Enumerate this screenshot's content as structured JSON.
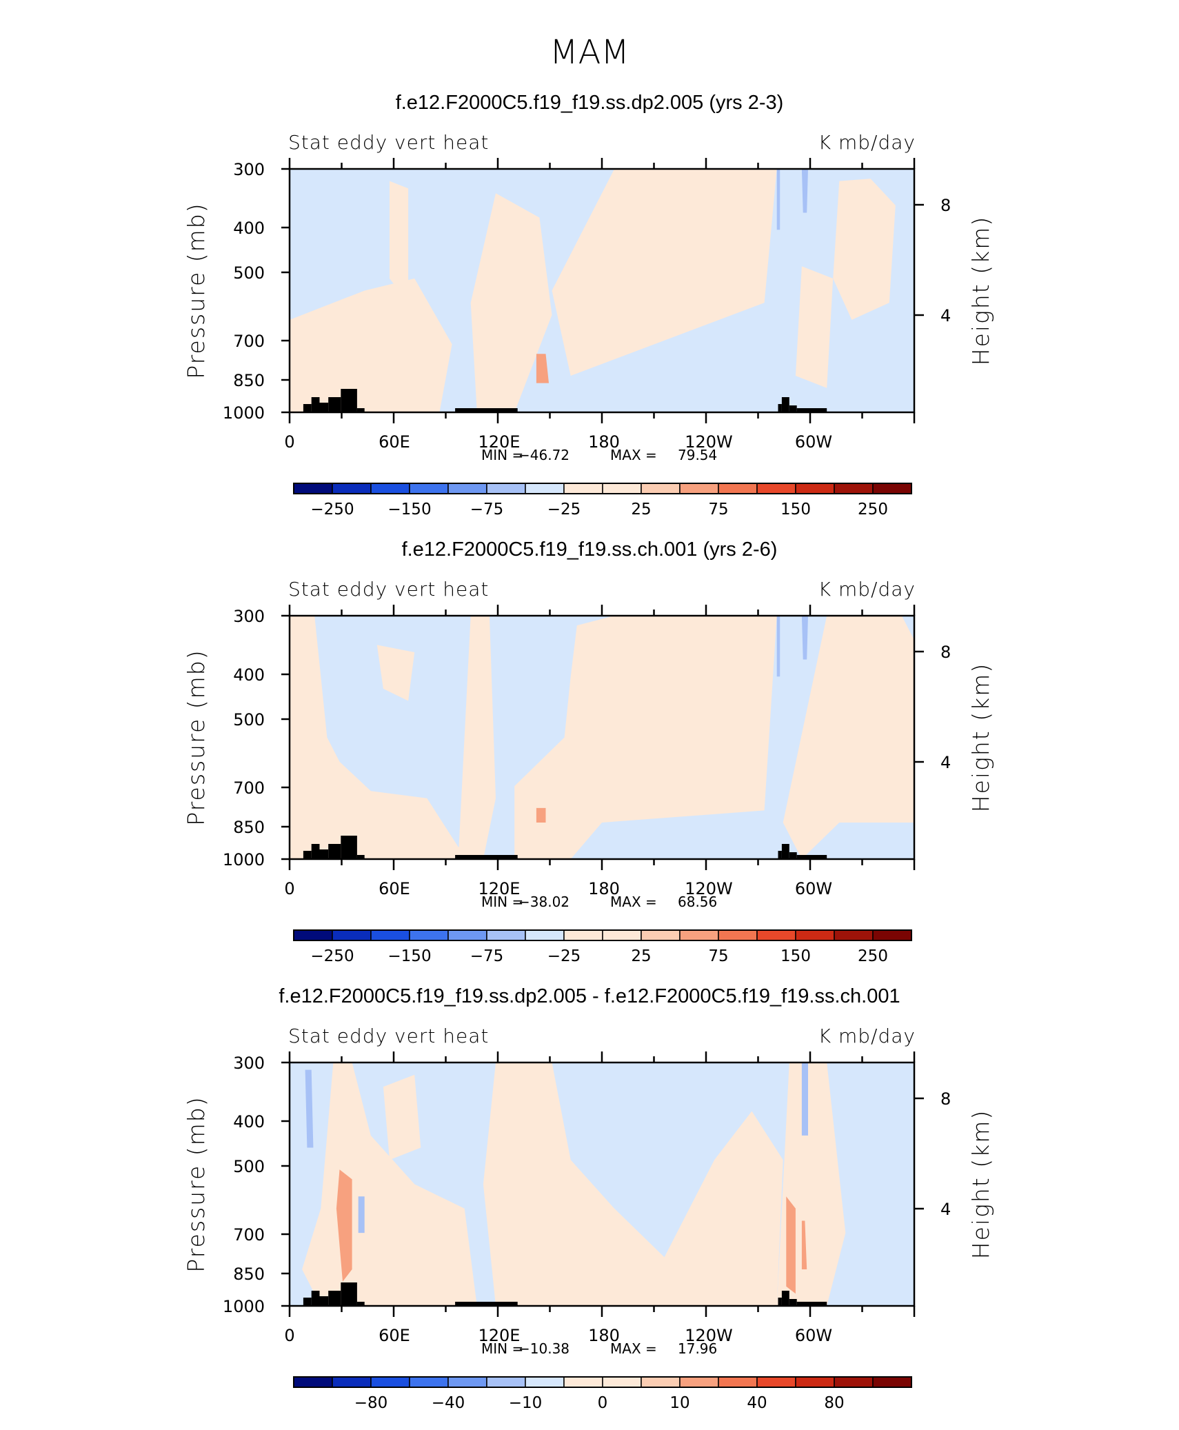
{
  "figure_title": "MAM",
  "chart_data": [
    {
      "type": "heatmap",
      "title": "f.e12.F2000C5.f19_f19.ss.dp2.005 (yrs 2-3)",
      "left_label": "Stat eddy vert heat",
      "right_label": "K mb/day",
      "ylabel": "Pressure (mb)",
      "ylabel_right": "Height (km)",
      "y_ticks": [
        "300",
        "400",
        "500",
        "700",
        "850",
        "1000"
      ],
      "y_right_ticks": [
        "8",
        "4"
      ],
      "x_ticks": [
        "0",
        "60E",
        "120E",
        "180",
        "120W",
        "60W"
      ],
      "stats": {
        "min_label": "MIN =",
        "min": "−46.72",
        "max_label": "MAX =",
        "max": "79.54"
      },
      "colorbar_labels": [
        "−250",
        "−150",
        "−75",
        "−25",
        "25",
        "75",
        "150",
        "250"
      ],
      "regions_negative": [
        "300-1000 mb across most longitudes"
      ],
      "regions_positive": [
        "approximately 180 to 100W, 300-800 mb"
      ]
    },
    {
      "type": "heatmap",
      "title": "f.e12.F2000C5.f19_f19.ss.ch.001 (yrs 2-6)",
      "left_label": "Stat eddy vert heat",
      "right_label": "K mb/day",
      "ylabel": "Pressure (mb)",
      "ylabel_right": "Height (km)",
      "y_ticks": [
        "300",
        "400",
        "500",
        "700",
        "850",
        "1000"
      ],
      "y_right_ticks": [
        "8",
        "4"
      ],
      "x_ticks": [
        "0",
        "60E",
        "120E",
        "180",
        "120W",
        "60W"
      ],
      "stats": {
        "min_label": "MIN =",
        "min": "−38.02",
        "max_label": "MAX =",
        "max": "68.56"
      },
      "colorbar_labels": [
        "−250",
        "−150",
        "−75",
        "−25",
        "25",
        "75",
        "150",
        "250"
      ]
    },
    {
      "type": "heatmap",
      "title": "f.e12.F2000C5.f19_f19.ss.dp2.005 - f.e12.F2000C5.f19_f19.ss.ch.001",
      "left_label": "Stat eddy vert heat",
      "right_label": "K mb/day",
      "ylabel": "Pressure (mb)",
      "ylabel_right": "Height (km)",
      "y_ticks": [
        "300",
        "400",
        "500",
        "700",
        "850",
        "1000"
      ],
      "y_right_ticks": [
        "8",
        "4"
      ],
      "x_ticks": [
        "0",
        "60E",
        "120E",
        "180",
        "120W",
        "60W"
      ],
      "stats": {
        "min_label": "MIN =",
        "min": "−10.38",
        "max_label": "MAX =",
        "max": "17.96"
      },
      "colorbar_labels": [
        "−80",
        "−40",
        "−10",
        "0",
        "10",
        "40",
        "80"
      ]
    }
  ],
  "colors": {
    "scale": [
      "#000b7a",
      "#0a2dbb",
      "#1a4fe0",
      "#3d73ee",
      "#6e98f2",
      "#a7c1f6",
      "#d6e7fc",
      "#fde9d8",
      "#fbcdb3",
      "#f7a17f",
      "#f27651",
      "#e8482a",
      "#cc2a14",
      "#9e1309",
      "#7a0503"
    ],
    "neg_light": "#d6e7fc",
    "neg_mid": "#a7c1f6",
    "pos_light": "#fde9d8",
    "pos_mid": "#f7a17f",
    "pos_strong": "#f27651",
    "topography": "#000000"
  }
}
